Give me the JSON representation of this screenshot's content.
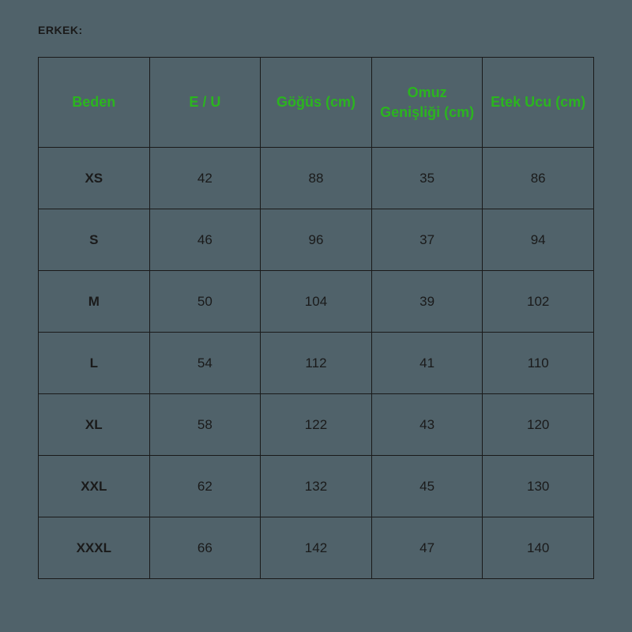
{
  "title": "ERKEK:",
  "size_table": {
    "type": "table",
    "header_color": "#2bb51f",
    "body_text_color": "#1a1a1a",
    "border_color": "#1a1a1a",
    "background_color": "#50626a",
    "header_fontsize": 18,
    "body_fontsize": 17,
    "columns": [
      "Beden",
      "E / U",
      "Göğüs (cm)",
      "Omuz Genişliği (cm)",
      "Etek Ucu (cm)"
    ],
    "rows": [
      {
        "size": "XS",
        "eu": "42",
        "chest": "88",
        "shoulder": "35",
        "hem": "86"
      },
      {
        "size": "S",
        "eu": "46",
        "chest": "96",
        "shoulder": "37",
        "hem": "94"
      },
      {
        "size": "M",
        "eu": "50",
        "chest": "104",
        "shoulder": "39",
        "hem": "102"
      },
      {
        "size": "L",
        "eu": "54",
        "chest": "112",
        "shoulder": "41",
        "hem": "110"
      },
      {
        "size": "XL",
        "eu": "58",
        "chest": "122",
        "shoulder": "43",
        "hem": "120"
      },
      {
        "size": "XXL",
        "eu": "62",
        "chest": "132",
        "shoulder": "45",
        "hem": "130"
      },
      {
        "size": "XXXL",
        "eu": "66",
        "chest": "142",
        "shoulder": "47",
        "hem": "140"
      }
    ]
  }
}
